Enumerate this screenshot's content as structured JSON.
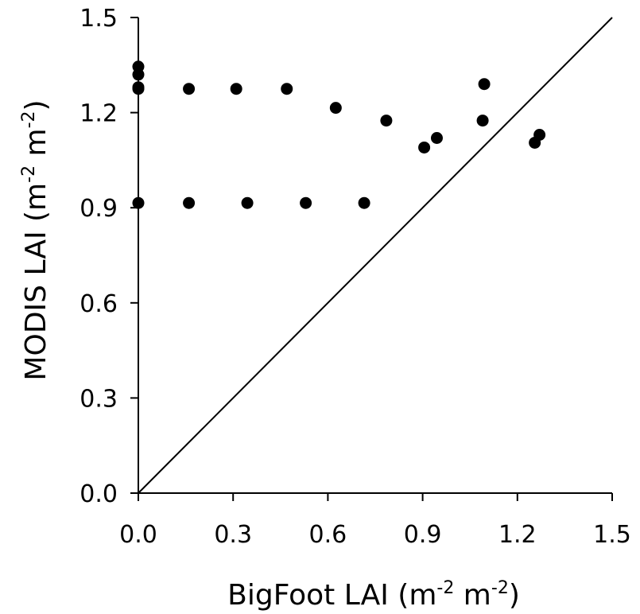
{
  "chart_data": {
    "type": "scatter",
    "xlabel": {
      "base": "BigFoot LAI ",
      "open": "(m",
      "sup1": "-2",
      "mid": " m",
      "sup2": "-2",
      "close": ")"
    },
    "ylabel": {
      "base": "MODIS LAI ",
      "open": "(m",
      "sup1": "-2",
      "mid": " m",
      "sup2": "-2",
      "close": ")"
    },
    "xlim": [
      0,
      1.5
    ],
    "ylim": [
      0,
      1.5
    ],
    "x_ticks": [
      "0.0",
      "0.3",
      "0.6",
      "0.9",
      "1.2",
      "1.5"
    ],
    "y_ticks": [
      "0.0",
      "0.3",
      "0.6",
      "0.9",
      "1.2",
      "1.5"
    ],
    "grid": false,
    "reference_line": {
      "from": [
        0,
        0
      ],
      "to": [
        1.5,
        1.5
      ]
    },
    "series": [
      {
        "points": [
          [
            0.0,
            1.345
          ],
          [
            0.0,
            1.32
          ],
          [
            0.0,
            1.28
          ],
          [
            0.0,
            1.275
          ],
          [
            0.16,
            1.275
          ],
          [
            0.31,
            1.275
          ],
          [
            0.47,
            1.275
          ],
          [
            0.625,
            1.215
          ],
          [
            0.785,
            1.175
          ],
          [
            0.905,
            1.09
          ],
          [
            0.945,
            1.12
          ],
          [
            1.09,
            1.175
          ],
          [
            1.095,
            1.29
          ],
          [
            1.255,
            1.105
          ],
          [
            1.27,
            1.13
          ],
          [
            0.0,
            0.915
          ],
          [
            0.16,
            0.915
          ],
          [
            0.345,
            0.915
          ],
          [
            0.53,
            0.915
          ],
          [
            0.715,
            0.915
          ]
        ]
      }
    ]
  }
}
